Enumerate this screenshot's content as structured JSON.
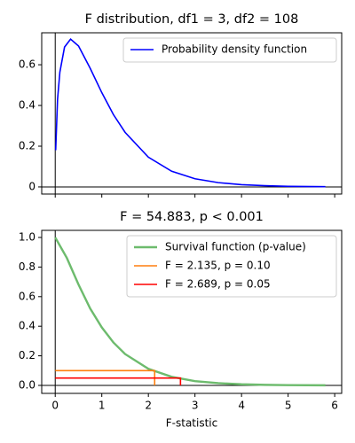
{
  "chart_data": [
    {
      "type": "line",
      "title": "F distribution, df1 = 3, df2 = 108",
      "xlim": [
        -0.29,
        6.15
      ],
      "ylim": [
        -0.035,
        0.757
      ],
      "yticks": [
        0.0,
        0.2,
        0.4,
        0.6
      ],
      "legend": "upper right",
      "series": [
        {
          "name": "Probability density function",
          "color": "#0000ff",
          "x": [
            0.01,
            0.05,
            0.1,
            0.2,
            0.33,
            0.5,
            0.75,
            1.0,
            1.25,
            1.5,
            2.0,
            2.5,
            3.0,
            3.5,
            4.0,
            4.5,
            5.0,
            5.8
          ],
          "values": [
            0.18,
            0.43,
            0.564,
            0.687,
            0.726,
            0.692,
            0.583,
            0.463,
            0.355,
            0.268,
            0.146,
            0.077,
            0.04,
            0.021,
            0.011,
            0.006,
            0.003,
            0.001
          ]
        }
      ]
    },
    {
      "type": "line",
      "title": "F = 54.883, p < 0.001",
      "xlabel": "F-statistic",
      "xlim": [
        -0.29,
        6.15
      ],
      "ylim": [
        -0.054,
        1.048
      ],
      "xticks": [
        0,
        1,
        2,
        3,
        4,
        5,
        6
      ],
      "yticks": [
        {
          "value": 0,
          "label": "0.0"
        },
        0.2,
        0.4,
        0.6,
        0.8,
        {
          "value": 1,
          "label": "1.0"
        }
      ],
      "legend": "upper right",
      "series": [
        {
          "name": "Survival function (p-value)",
          "color": "#6dbb6d",
          "x": [
            0,
            0.25,
            0.5,
            0.75,
            1.0,
            1.25,
            1.5,
            2.0,
            2.5,
            3.0,
            3.5,
            4.0,
            4.5,
            5.0,
            5.8
          ],
          "values": [
            1.0,
            0.861,
            0.682,
            0.52,
            0.392,
            0.29,
            0.212,
            0.112,
            0.058,
            0.029,
            0.015,
            0.0074,
            0.0037,
            0.002,
            0.0007
          ]
        },
        {
          "name": "F = 2.135, p = 0.10",
          "color": "#ff7f0e",
          "x": [
            0,
            2.135,
            2.135
          ],
          "values": [
            0.1,
            0.1,
            0
          ]
        },
        {
          "name": "F = 2.689, p = 0.05",
          "color": "#ff0000",
          "x": [
            0,
            2.689,
            2.689
          ],
          "values": [
            0.05,
            0.05,
            0
          ]
        }
      ]
    }
  ]
}
